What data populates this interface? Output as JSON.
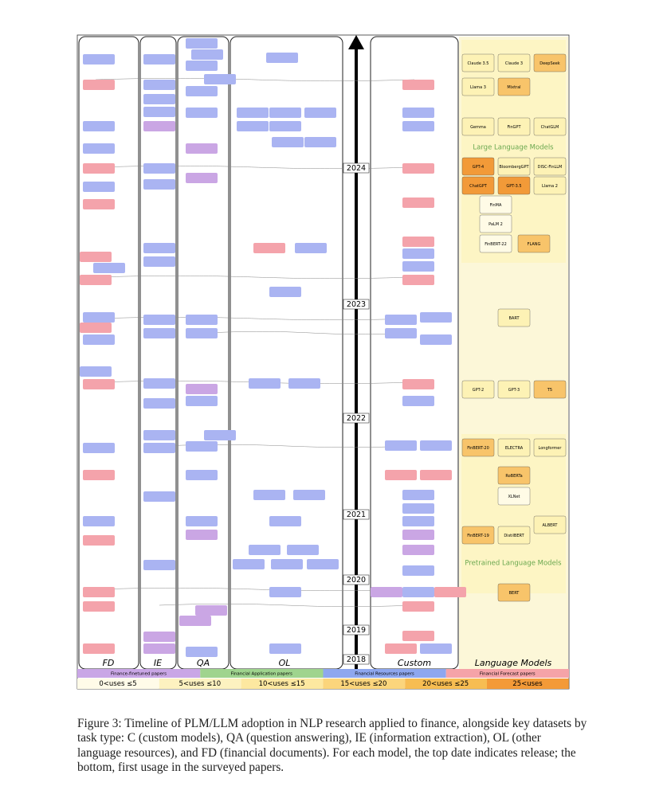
{
  "figure": {
    "columns": [
      "FD",
      "IE",
      "QA",
      "OL",
      "Custom",
      "Language Models"
    ],
    "years": [
      "2024",
      "2023",
      "2022",
      "2021",
      "2020",
      "2019",
      "2018"
    ],
    "groups": [
      "Large Language Models",
      "Pretrained Language Models"
    ],
    "legend": {
      "paper_types": [
        "Finance-finetuned papers",
        "Financial Application papers",
        "Financial Resources papers",
        "Financial Forecast papers"
      ],
      "uses": [
        "0<uses ≤5",
        "5<uses ≤10",
        "10<uses ≤15",
        "15<uses ≤20",
        "20<uses ≤25",
        "25<uses"
      ]
    },
    "models": [
      "Claude 3.5",
      "Claude 3",
      "DeepSeek",
      "Llama 3",
      "Mixtral",
      "Gemma",
      "FinGPT",
      "ChatGLM",
      "GPT-4",
      "BloombergGPT",
      "DISC-FinLLM",
      "ChatGPT",
      "GPT-3.5",
      "Llama 2",
      "FinMA",
      "PaLM 2",
      "FinBERT-22",
      "FLANG",
      "BART",
      "GPT-2",
      "GPT-3",
      "T5",
      "FinBERT-20",
      "ELECTRA",
      "Longformer",
      "RoBERTa",
      "XLNet",
      "FinBERT-19",
      "DistilBERT",
      "ALBERT",
      "BERT"
    ]
  },
  "caption": "Figure 3: Timeline of PLM/LLM adoption in NLP research applied to finance, alongside key datasets by task type: C (custom models), QA (question answering), IE (information extraction), OL (other language resources), and FD (financial documents). For each model, the top date indicates release; the bottom, first usage in the surveyed papers."
}
